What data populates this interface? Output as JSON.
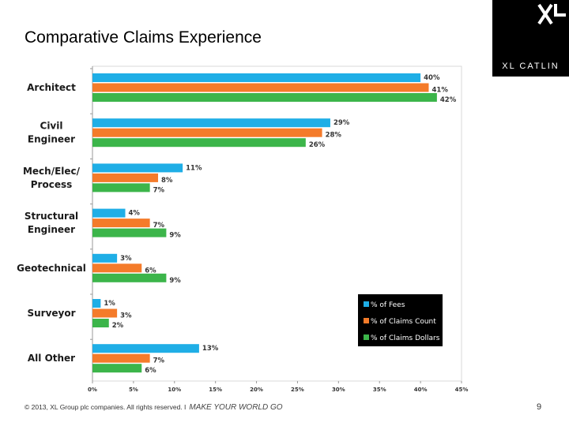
{
  "slide": {
    "title": "Comparative Claims Experience",
    "copyright": "© 2013, XL Group plc companies. All rights reserved. I",
    "tagline": "MAKE YOUR WORLD GO",
    "page_number": "9"
  },
  "brand": {
    "name": "XL CATLIN",
    "mark": "XL"
  },
  "colors": {
    "fees": "#1faee6",
    "claims_count": "#f47b2a",
    "claims_dollars": "#3cb54a",
    "legend_bg": "#000000"
  },
  "chart_data": {
    "type": "bar",
    "orientation": "horizontal",
    "title": "",
    "categories": [
      [
        "Architect"
      ],
      [
        "Civil",
        "Engineer"
      ],
      [
        "Mech/Elec/",
        "Process"
      ],
      [
        "Structural",
        "Engineer"
      ],
      [
        "Geotechnical"
      ],
      [
        "Surveyor"
      ],
      [
        "All Other"
      ]
    ],
    "series": [
      {
        "name": "% of Fees",
        "color_key": "fees",
        "values": [
          40,
          29,
          11,
          4,
          3,
          1,
          13
        ]
      },
      {
        "name": "% of Claims Count",
        "color_key": "claims_count",
        "values": [
          41,
          28,
          8,
          7,
          6,
          3,
          7
        ]
      },
      {
        "name": "% of Claims Dollars",
        "color_key": "claims_dollars",
        "values": [
          42,
          26,
          7,
          9,
          9,
          2,
          6
        ]
      }
    ],
    "xlim": [
      0,
      45
    ],
    "xticks": [
      "0%",
      "5%",
      "10%",
      "15%",
      "20%",
      "25%",
      "30%",
      "35%",
      "40%",
      "45%"
    ],
    "value_suffix": "%",
    "grid": true,
    "legend_position": "bottom-right"
  }
}
